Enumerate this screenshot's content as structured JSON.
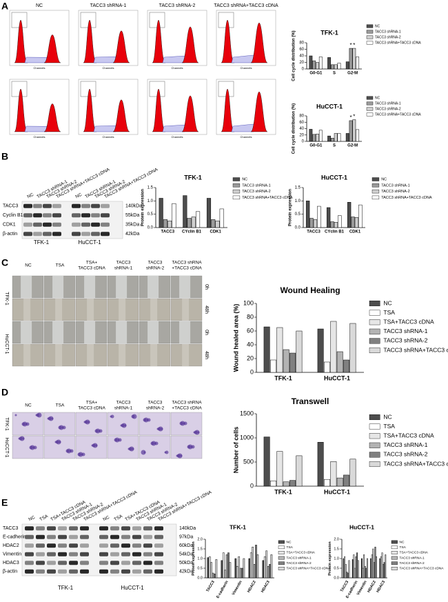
{
  "panels": {
    "letters": [
      "A",
      "B",
      "C",
      "D",
      "E"
    ],
    "flow": {
      "headers": [
        "NC",
        "TACC3 shRNA-1",
        "TACC3 shRNA-2",
        "TACC3 shRNA+TACC3 cDNA"
      ],
      "axis_label": "Channels"
    },
    "blot_b": {
      "lanes": [
        "NC",
        "TACC3 shRNA-1",
        "TACC3 shRNA-2",
        "TACC3 shRNA+TACC3 cDNA"
      ],
      "rows": [
        "TACC3",
        "Cyclin B1",
        "CDK1",
        "β-actin"
      ],
      "sizes": [
        "140kDa",
        "55kDa",
        "35kDa",
        "42kDa"
      ],
      "groups": [
        "TFK-1",
        "HuCCT-1"
      ]
    },
    "wound": {
      "headers": [
        [
          "NC"
        ],
        [
          "TSA"
        ],
        [
          "TSA+",
          "TACC3 cDNA"
        ],
        [
          "TACC3",
          "shRNA-1"
        ],
        [
          "TACC3",
          "shRNA-2"
        ],
        [
          "TACC3 shRNA",
          "+TACC3 cDNA"
        ]
      ],
      "rows": [
        "TFK-1",
        "HuCCT-1"
      ],
      "times": [
        "0h",
        "48h"
      ]
    },
    "transwell": {
      "headers": [
        [
          "NC"
        ],
        [
          "TSA"
        ],
        [
          "TSA+",
          "TACC3 cDNA"
        ],
        [
          "TACC3",
          "shRNA-1"
        ],
        [
          "TACC3",
          "shRNA-2"
        ],
        [
          "TACC3 shRNA",
          "+TACC3 cDNA"
        ]
      ],
      "rows": [
        "TFK-1",
        "HuCCT-1"
      ]
    },
    "blot_e": {
      "lanes": [
        "NC",
        "TSA",
        "TSA+TACC3 cDNA",
        "TACC3 shRNA-1",
        "TACC3 shRNA-2",
        "TACC3 shRNA+TACC3 cDNA"
      ],
      "rows": [
        "TACC3",
        "E-cadherin",
        "HDAC2",
        "Vimentin",
        "HDAC3",
        "β-actin"
      ],
      "sizes": [
        "140kDa",
        "97kDa",
        "60kDa",
        "54kDa",
        "50kDa",
        "42kDa"
      ],
      "groups": [
        "TFK-1",
        "HuCCT-1"
      ]
    }
  },
  "chart_data": [
    {
      "type": "bar",
      "title": "TFK-1",
      "y_label": "Cell cycle distribution (%)",
      "categories": [
        "G0-G1",
        "S",
        "G2-M"
      ],
      "series": [
        {
          "name": "NC",
          "color": "#4d4d4d",
          "values": [
            40,
            35,
            22
          ]
        },
        {
          "name": "TACC3 shRNA-1",
          "color": "#9a9a9a",
          "values": [
            25,
            13,
            63
          ]
        },
        {
          "name": "TACC3 shRNA-2",
          "color": "#cfcfcf",
          "values": [
            20,
            13,
            63
          ]
        },
        {
          "name": "TACC3 shRNA+TACC3 cDNA",
          "color": "#ffffff",
          "values": [
            37,
            18,
            37
          ]
        }
      ],
      "ylim": [
        0,
        80
      ],
      "yticks": [
        0,
        20,
        40,
        60,
        80
      ],
      "annotations": [
        "*",
        "*"
      ]
    },
    {
      "type": "bar",
      "title": "HuCCT-1",
      "y_label": "Cell cycle distribution (%)",
      "categories": [
        "G0-G1",
        "S",
        "G2-M"
      ],
      "series": [
        {
          "name": "NC",
          "color": "#4d4d4d",
          "values": [
            38,
            17,
            25
          ]
        },
        {
          "name": "TACC3 shRNA-1",
          "color": "#9a9a9a",
          "values": [
            22,
            10,
            65
          ]
        },
        {
          "name": "TACC3 shRNA-2",
          "color": "#cfcfcf",
          "values": [
            23,
            25,
            68
          ]
        },
        {
          "name": "TACC3 shRNA+TACC3 cDNA",
          "color": "#ffffff",
          "values": [
            35,
            25,
            37
          ]
        }
      ],
      "ylim": [
        0,
        80
      ],
      "yticks": [
        0,
        20,
        40,
        60,
        80
      ],
      "annotations": [
        "*",
        "*"
      ]
    },
    {
      "type": "bar",
      "title": "TFK-1",
      "y_label": "Protein expression",
      "categories": [
        "TACC3",
        "CYclin B1",
        "CDK1"
      ],
      "series": [
        {
          "name": "NC",
          "color": "#4d4d4d",
          "values": [
            1.1,
            1.2,
            1.1
          ]
        },
        {
          "name": "TACC3 shRNA-1",
          "color": "#9a9a9a",
          "values": [
            0.3,
            0.35,
            0.3
          ]
        },
        {
          "name": "TACC3 shRNA-2",
          "color": "#cfcfcf",
          "values": [
            0.25,
            0.4,
            0.25
          ]
        },
        {
          "name": "TACC3 shRNA+TACC3 cDNA",
          "color": "#ffffff",
          "values": [
            0.9,
            0.6,
            0.7
          ]
        }
      ],
      "ylim": [
        0,
        1.5
      ],
      "yticks": [
        {
          "value": 0,
          "label": "0.0"
        },
        {
          "value": 0.5,
          "label": "0.5"
        },
        {
          "value": 1,
          "label": "1.0"
        },
        {
          "value": 1.5,
          "label": "1.5"
        }
      ]
    },
    {
      "type": "bar",
      "title": "HuCCT-1",
      "y_label": "Protein expression",
      "categories": [
        "TACC3",
        "CYclin B1",
        "CDK1"
      ],
      "series": [
        {
          "name": "NC",
          "color": "#4d4d4d",
          "values": [
            1.0,
            0.75,
            0.95
          ]
        },
        {
          "name": "TACC3 shRNA-1",
          "color": "#9a9a9a",
          "values": [
            0.35,
            0.22,
            0.4
          ]
        },
        {
          "name": "TACC3 shRNA-2",
          "color": "#cfcfcf",
          "values": [
            0.3,
            0.2,
            0.38
          ]
        },
        {
          "name": "TACC3 shRNA+TACC3 cDNA",
          "color": "#ffffff",
          "values": [
            0.8,
            0.45,
            0.85
          ]
        }
      ],
      "ylim": [
        0,
        1.5
      ],
      "yticks": [
        {
          "value": 0,
          "label": "0.0"
        },
        {
          "value": 0.5,
          "label": "0.5"
        },
        {
          "value": 1,
          "label": "1.0"
        },
        {
          "value": 1.5,
          "label": "1.5"
        }
      ]
    },
    {
      "type": "bar",
      "title": "Wound Healing",
      "y_label": "Wound healed area (%)",
      "categories": [
        "TFK-1",
        "HuCCT-1"
      ],
      "series": [
        {
          "name": "NC",
          "color": "#4d4d4d",
          "values": [
            66,
            63
          ]
        },
        {
          "name": "TSA",
          "color": "#ffffff",
          "values": [
            18,
            15
          ]
        },
        {
          "name": "TSA+TACC3 cDNA",
          "color": "#e6e6e6",
          "values": [
            65,
            74
          ]
        },
        {
          "name": "TACC3 shRNA-1",
          "color": "#b3b3b3",
          "values": [
            33,
            30
          ]
        },
        {
          "name": "TACC3 shRNA-2",
          "color": "#808080",
          "values": [
            28,
            18
          ]
        },
        {
          "name": "TACC3 shRNA+TACC3 cDNA",
          "color": "#d9d9d9",
          "values": [
            60,
            71
          ]
        }
      ],
      "ylim": [
        0,
        100
      ],
      "yticks": [
        0,
        20,
        40,
        60,
        80,
        100
      ]
    },
    {
      "type": "bar",
      "title": "Transwell",
      "y_label": "Number of cells",
      "categories": [
        "TFK-1",
        "HuCCT-1"
      ],
      "series": [
        {
          "name": "NC",
          "color": "#4d4d4d",
          "values": [
            1020,
            910
          ]
        },
        {
          "name": "TSA",
          "color": "#ffffff",
          "values": [
            110,
            140
          ]
        },
        {
          "name": "TSA+TACC3 cDNA",
          "color": "#e6e6e6",
          "values": [
            720,
            510
          ]
        },
        {
          "name": "TACC3 shRNA-1",
          "color": "#b3b3b3",
          "values": [
            90,
            170
          ]
        },
        {
          "name": "TACC3 shRNA-2",
          "color": "#808080",
          "values": [
            120,
            230
          ]
        },
        {
          "name": "TACC3 shRNA+TACC3 cDNA",
          "color": "#d9d9d9",
          "values": [
            630,
            560
          ]
        }
      ],
      "ylim": [
        0,
        1500
      ],
      "yticks": [
        0,
        500,
        1000,
        1500
      ]
    },
    {
      "type": "bar",
      "title": "TFK-1",
      "y_label": "Protein expression",
      "categories": [
        "TACC3",
        "E-cadherin",
        "Vimentin",
        "HDAC2",
        "HDAC3"
      ],
      "series": [
        {
          "name": "NC",
          "color": "#4d4d4d",
          "values": [
            1.05,
            0.9,
            1.0,
            1.0,
            0.9
          ]
        },
        {
          "name": "TSA",
          "color": "#ffffff",
          "values": [
            1.1,
            1.3,
            0.6,
            1.3,
            1.1
          ]
        },
        {
          "name": "TSA+TACC3 cDNA",
          "color": "#e6e6e6",
          "values": [
            0.8,
            0.4,
            1.1,
            1.6,
            1.4
          ]
        },
        {
          "name": "TACC3 shRNA-1",
          "color": "#b3b3b3",
          "values": [
            0.25,
            1.2,
            0.5,
            0.7,
            0.6
          ]
        },
        {
          "name": "TACC3 shRNA-2",
          "color": "#808080",
          "values": [
            0.2,
            1.3,
            0.5,
            1.7,
            0.7
          ]
        },
        {
          "name": "TACC3 shRNA+TACC3 cDNA",
          "color": "#d9d9d9",
          "values": [
            0.95,
            0.8,
            1.0,
            1.2,
            1.2
          ]
        }
      ],
      "ylim": [
        0,
        2
      ],
      "yticks": [
        {
          "value": 0,
          "label": "0.0"
        },
        {
          "value": 0.5,
          "label": "0.5"
        },
        {
          "value": 1,
          "label": "1.0"
        },
        {
          "value": 1.5,
          "label": "1.5"
        },
        {
          "value": 2,
          "label": "2.0"
        }
      ]
    },
    {
      "type": "bar",
      "title": "HuCCT-1",
      "y_label": "Protein expression",
      "categories": [
        "TACC3",
        "E-cadherin",
        "Vimentin",
        "HDAC2",
        "HDAC3"
      ],
      "series": [
        {
          "name": "NC",
          "color": "#4d4d4d",
          "values": [
            1.0,
            0.95,
            1.0,
            1.0,
            1.0
          ]
        },
        {
          "name": "TSA",
          "color": "#ffffff",
          "values": [
            1.1,
            1.2,
            0.5,
            1.2,
            1.1
          ]
        },
        {
          "name": "TSA+TACC3 cDNA",
          "color": "#e6e6e6",
          "values": [
            0.7,
            0.5,
            1.2,
            1.5,
            1.3
          ]
        },
        {
          "name": "TACC3 shRNA-1",
          "color": "#b3b3b3",
          "values": [
            0.3,
            1.1,
            0.6,
            0.8,
            0.7
          ]
        },
        {
          "name": "TACC3 shRNA-2",
          "color": "#808080",
          "values": [
            0.25,
            1.3,
            0.5,
            1.6,
            0.8
          ]
        },
        {
          "name": "TACC3 shRNA+TACC3 cDNA",
          "color": "#d9d9d9",
          "values": [
            0.9,
            0.9,
            1.0,
            1.1,
            1.2
          ]
        }
      ],
      "ylim": [
        0,
        2
      ],
      "yticks": [
        {
          "value": 0,
          "label": "0.0"
        },
        {
          "value": 0.5,
          "label": "0.5"
        },
        {
          "value": 1,
          "label": "1.0"
        },
        {
          "value": 1.5,
          "label": "1.5"
        },
        {
          "value": 2,
          "label": "2.0"
        }
      ]
    }
  ]
}
